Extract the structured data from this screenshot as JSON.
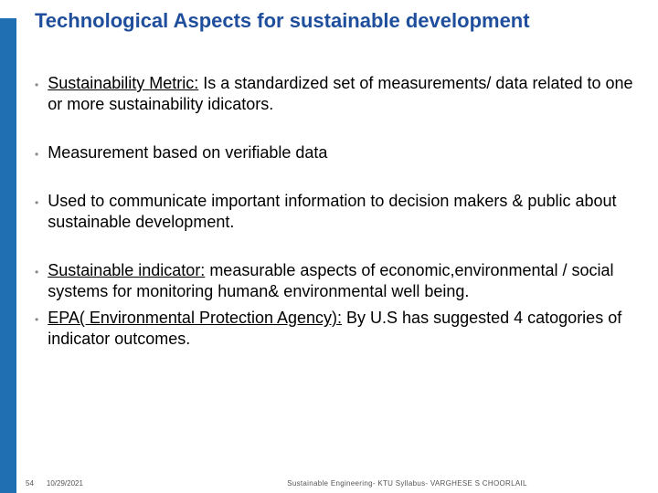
{
  "title": "Technological Aspects for sustainable development",
  "bullets": [
    {
      "lead": "Sustainability Metric:",
      "rest": " Is a standardized set of measurements/ data related to one or more sustainability idicators."
    },
    {
      "lead": "",
      "rest": "Measurement based on verifiable data"
    },
    {
      "lead": "",
      "rest": "Used to communicate important information to decision makers & public about sustainable development."
    },
    {
      "lead": "Sustainable indicator:",
      "rest": " measurable aspects of economic,environmental / social systems for monitoring human& environmental well being."
    },
    {
      "lead": "EPA( Environmental Protection Agency):",
      "rest": " By U.S has suggested 4 catogories of indicator outcomes."
    }
  ],
  "footer": {
    "page": "54",
    "date": "10/29/2021",
    "center": "Sustainable Engineering- KTU Syllabus- VARGHESE S CHOORLAIL"
  },
  "colors": {
    "accent_bar": "#1f6fb2",
    "title_color": "#1f4e9c",
    "text_color": "#000000",
    "bullet_color": "#888888",
    "background": "#ffffff"
  }
}
